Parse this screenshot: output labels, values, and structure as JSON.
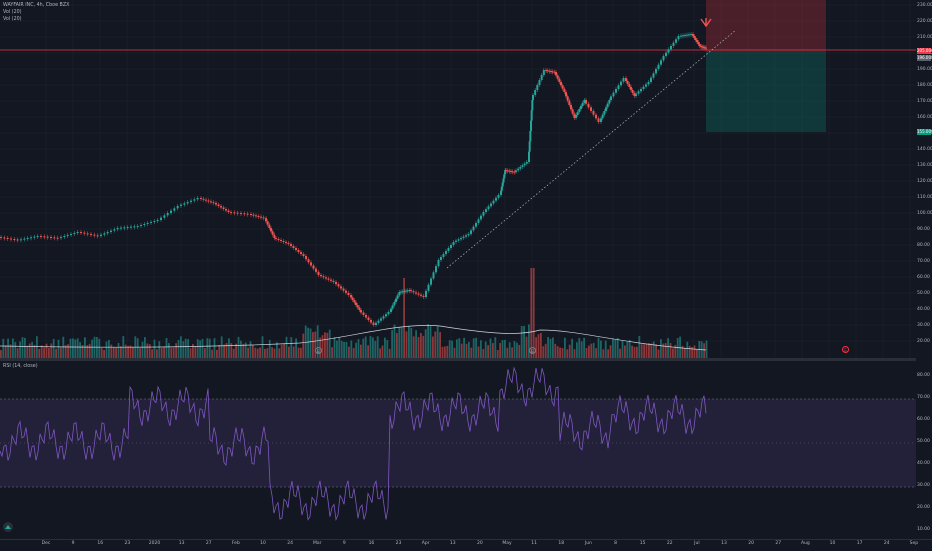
{
  "legend": {
    "title": "WAYFAIR INC, 4h, Cboe BZX",
    "vol1": "Vol (20)",
    "vol2": "Vol (20)",
    "rsi": "RSI (14, close)"
  },
  "price_axis": [
    "230.00",
    "220.00",
    "210.00",
    "200.00",
    "190.00",
    "180.00",
    "170.00",
    "160.00",
    "150.00",
    "140.00",
    "130.00",
    "120.00",
    "110.00",
    "100.00",
    "90.00",
    "80.00",
    "70.00",
    "60.00",
    "50.00",
    "40.00",
    "30.00",
    "20.00"
  ],
  "price_tags": {
    "upper": "205.000",
    "current": "196.000",
    "lower": "155.000"
  },
  "rsi_axis": [
    "80.00",
    "70.00",
    "60.00",
    "50.00",
    "40.00",
    "30.00",
    "20.00",
    "10.00"
  ],
  "time_axis": [
    "Dec",
    "9",
    "16",
    "23",
    "2020",
    "13",
    "27",
    "Feb",
    "10",
    "24",
    "Mar",
    "9",
    "16",
    "23",
    "Apr",
    "13",
    "20",
    "May",
    "11",
    "18",
    "Jun",
    "8",
    "15",
    "22",
    "Jul",
    "13",
    "20",
    "27",
    "Aug",
    "10",
    "17",
    "24",
    "Sep"
  ],
  "badges": {
    "e1": "E",
    "e2": "E",
    "e3": "E"
  },
  "colors": {
    "up": "#26a69a",
    "down": "#ef5350",
    "rsi": "#7e57c2",
    "background": "#131722"
  }
}
